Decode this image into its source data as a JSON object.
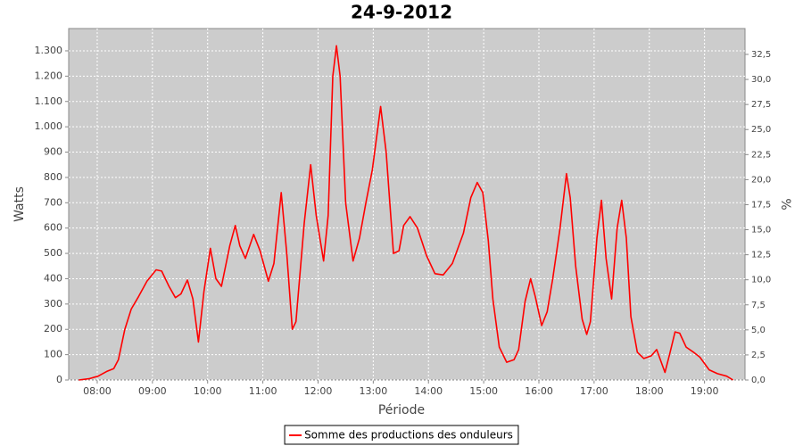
{
  "chart_data": {
    "type": "line",
    "title": "24-9-2012",
    "x_label": "Période",
    "y_label": "Watts",
    "y2_label": "%",
    "x": [
      "07:40",
      "07:51",
      "08:01",
      "08:11",
      "08:18",
      "08:23",
      "08:30",
      "08:37",
      "08:45",
      "08:54",
      "09:04",
      "09:10",
      "09:18",
      "09:25",
      "09:31",
      "09:38",
      "09:44",
      "09:50",
      "09:56",
      "10:03",
      "10:09",
      "10:15",
      "10:24",
      "10:30",
      "10:35",
      "10:41",
      "10:50",
      "10:57",
      "11:06",
      "11:12",
      "11:20",
      "11:26",
      "11:32",
      "11:36",
      "11:45",
      "11:52",
      "11:58",
      "12:06",
      "12:11",
      "12:16",
      "12:20",
      "12:24",
      "12:30",
      "12:38",
      "12:45",
      "12:52",
      "12:59",
      "13:08",
      "13:14",
      "13:22",
      "13:28",
      "13:33",
      "13:40",
      "13:48",
      "13:58",
      "14:07",
      "14:16",
      "14:26",
      "14:38",
      "14:46",
      "14:53",
      "14:59",
      "15:05",
      "15:10",
      "15:17",
      "15:25",
      "15:33",
      "15:38",
      "15:45",
      "15:51",
      "15:56",
      "16:03",
      "16:09",
      "16:15",
      "16:23",
      "16:30",
      "16:34",
      "16:40",
      "16:47",
      "16:52",
      "16:56",
      "17:03",
      "17:08",
      "17:13",
      "17:19",
      "17:25",
      "17:30",
      "17:35",
      "17:40",
      "17:47",
      "17:54",
      "18:02",
      "18:08",
      "18:14",
      "18:17",
      "18:22",
      "18:28",
      "18:33",
      "18:40",
      "18:48",
      "18:55",
      "19:05",
      "19:14",
      "19:24",
      "19:31"
    ],
    "series": [
      {
        "name": "Somme des productions des onduleurs",
        "color": "#ff0000",
        "values": [
          0,
          5,
          15,
          35,
          45,
          80,
          200,
          280,
          330,
          390,
          435,
          430,
          370,
          325,
          340,
          395,
          320,
          150,
          350,
          520,
          400,
          370,
          530,
          610,
          530,
          480,
          575,
          510,
          390,
          460,
          740,
          500,
          200,
          230,
          620,
          850,
          650,
          470,
          650,
          1200,
          1320,
          1200,
          700,
          470,
          560,
          700,
          830,
          1080,
          900,
          500,
          510,
          610,
          645,
          600,
          490,
          420,
          415,
          460,
          580,
          720,
          780,
          740,
          550,
          320,
          130,
          70,
          80,
          120,
          310,
          400,
          330,
          215,
          270,
          400,
          600,
          815,
          720,
          450,
          240,
          180,
          230,
          560,
          710,
          480,
          320,
          600,
          710,
          560,
          250,
          110,
          85,
          95,
          120,
          60,
          30,
          100,
          190,
          185,
          130,
          110,
          90,
          40,
          25,
          15,
          0
        ]
      }
    ],
    "xlim": [
      "07:29",
      "19:44"
    ],
    "xticks": [
      "08:00",
      "09:00",
      "10:00",
      "11:00",
      "12:00",
      "13:00",
      "14:00",
      "15:00",
      "16:00",
      "17:00",
      "18:00",
      "19:00"
    ],
    "ylim": [
      0,
      1388
    ],
    "yticks": [
      0,
      100,
      200,
      300,
      400,
      500,
      600,
      700,
      800,
      900,
      {
        "value": 1000,
        "label": "1.000"
      },
      {
        "value": 1100,
        "label": "1.100"
      },
      {
        "value": 1200,
        "label": "1.200"
      },
      {
        "value": 1300,
        "label": "1.300"
      }
    ],
    "y2lim": [
      0,
      35.08
    ],
    "y2ticks": [
      {
        "value": 0,
        "label": "0,0"
      },
      {
        "value": 2.5,
        "label": "2,5"
      },
      {
        "value": 5,
        "label": "5,0"
      },
      {
        "value": 7.5,
        "label": "7,5"
      },
      {
        "value": 10,
        "label": "10,0"
      },
      {
        "value": 12.5,
        "label": "12,5"
      },
      {
        "value": 15,
        "label": "15,0"
      },
      {
        "value": 17.5,
        "label": "17,5"
      },
      {
        "value": 20,
        "label": "20,0"
      },
      {
        "value": 22.5,
        "label": "22,5"
      },
      {
        "value": 25,
        "label": "25,0"
      },
      {
        "value": 27.5,
        "label": "27,5"
      },
      {
        "value": 30,
        "label": "30,0"
      },
      {
        "value": 32.5,
        "label": "32,5"
      }
    ],
    "grid": true,
    "plot_background": "#cccccc",
    "legend": "bottom"
  }
}
